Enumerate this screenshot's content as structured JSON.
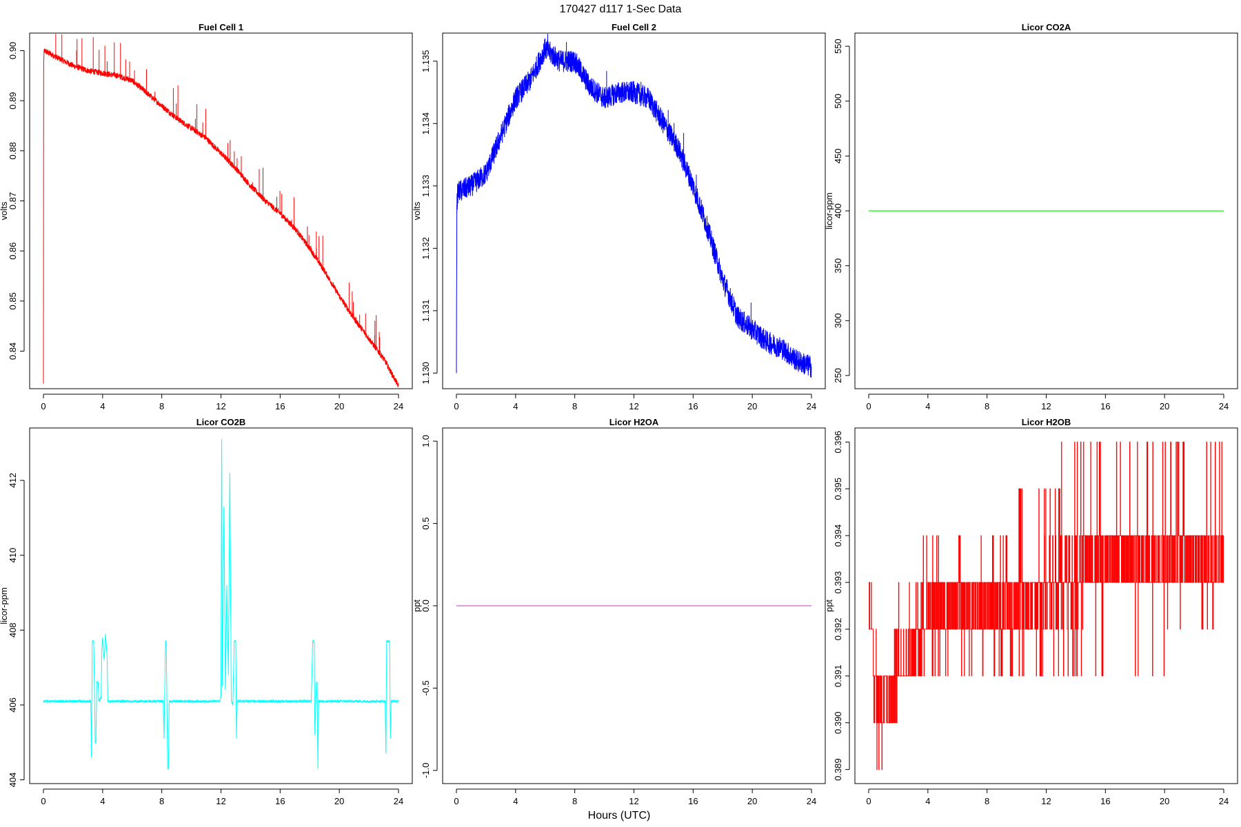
{
  "figure": {
    "title": "170427   d117   1-Sec Data",
    "xlabel": "Hours (UTC)"
  },
  "chart_data": [
    {
      "type": "line",
      "title": "Fuel Cell 1",
      "ylabel": "volts",
      "color": "#ff0000",
      "xlim": [
        0,
        24
      ],
      "ylim": [
        0.8325,
        0.9035
      ],
      "xticks": [
        0,
        4,
        8,
        12,
        16,
        20,
        24
      ],
      "xtick_labels": [
        "0",
        "4",
        "8",
        "12",
        "16",
        "20",
        "24"
      ],
      "yticks": [
        0.84,
        0.85,
        0.86,
        0.87,
        0.88,
        0.89,
        0.9
      ],
      "ytick_labels": [
        "0.84",
        "0.85",
        "0.86",
        "0.87",
        "0.88",
        "0.89",
        "0.90"
      ],
      "noise": 0.0006,
      "spike_count": 70,
      "spike_max": 0.007,
      "series": [
        {
          "x": [
            0,
            0.02,
            0.05,
            1,
            2,
            3,
            4,
            5,
            6,
            7,
            8,
            9,
            10,
            11,
            12,
            13,
            14,
            15,
            16,
            17,
            18,
            19,
            20,
            21,
            22,
            23,
            24
          ],
          "y": [
            0.8335,
            0.898,
            0.9,
            0.8985,
            0.897,
            0.896,
            0.8955,
            0.895,
            0.894,
            0.8915,
            0.889,
            0.8865,
            0.8845,
            0.8825,
            0.8795,
            0.8765,
            0.873,
            0.87,
            0.8675,
            0.8645,
            0.8605,
            0.856,
            0.851,
            0.8465,
            0.8425,
            0.8385,
            0.833
          ]
        }
      ]
    },
    {
      "type": "line",
      "title": "Fuel Cell 2",
      "ylabel": "volts",
      "color": "#0000ff",
      "xlim": [
        0,
        24
      ],
      "ylim": [
        1.12975,
        1.13545
      ],
      "xticks": [
        0,
        4,
        8,
        12,
        16,
        20,
        24
      ],
      "xtick_labels": [
        "0",
        "4",
        "8",
        "12",
        "16",
        "20",
        "24"
      ],
      "yticks": [
        1.13,
        1.131,
        1.132,
        1.133,
        1.134,
        1.135
      ],
      "ytick_labels": [
        "1.130",
        "1.131",
        "1.132",
        "1.133",
        "1.134",
        "1.135"
      ],
      "noise": 0.00018,
      "spike_count": 12,
      "spike_max": 0.0005,
      "series": [
        {
          "x": [
            0,
            0.03,
            0.1,
            1,
            2,
            3,
            4,
            5,
            6,
            7,
            8,
            9,
            10,
            11,
            12,
            13,
            14,
            15,
            16,
            17,
            18,
            19,
            20,
            21,
            22,
            23,
            24
          ],
          "y": [
            1.13,
            1.1327,
            1.1329,
            1.133,
            1.1332,
            1.1338,
            1.1344,
            1.1347,
            1.1352,
            1.135,
            1.135,
            1.1346,
            1.1344,
            1.1345,
            1.1345,
            1.1344,
            1.134,
            1.1336,
            1.133,
            1.1323,
            1.1315,
            1.1309,
            1.1307,
            1.1305,
            1.1304,
            1.1302,
            1.1301
          ]
        }
      ]
    },
    {
      "type": "line",
      "title": "Licor CO2A",
      "ylabel": "licor-ppm",
      "color": "#00ff00",
      "xlim": [
        0,
        24
      ],
      "ylim": [
        238,
        562
      ],
      "xticks": [
        0,
        4,
        8,
        12,
        16,
        20,
        24
      ],
      "xtick_labels": [
        "0",
        "4",
        "8",
        "12",
        "16",
        "20",
        "24"
      ],
      "yticks": [
        250,
        300,
        350,
        400,
        450,
        500,
        550
      ],
      "ytick_labels": [
        "250",
        "300",
        "350",
        "400",
        "450",
        "500",
        "550"
      ],
      "noise": 0,
      "spike_count": 0,
      "spike_max": 0,
      "series": [
        {
          "x": [
            0,
            24
          ],
          "y": [
            400,
            400
          ]
        }
      ]
    },
    {
      "type": "line",
      "title": "Licor CO2B",
      "ylabel": "licor-ppm",
      "color": "#00ffff",
      "xlim": [
        0,
        24
      ],
      "ylim": [
        403.9,
        413.4
      ],
      "xticks": [
        0,
        4,
        8,
        12,
        16,
        20,
        24
      ],
      "xtick_labels": [
        "0",
        "4",
        "8",
        "12",
        "16",
        "20",
        "24"
      ],
      "yticks": [
        404,
        406,
        408,
        410,
        412
      ],
      "ytick_labels": [
        "404",
        "406",
        "408",
        "410",
        "412"
      ],
      "noise": 0.03,
      "spike_count": 0,
      "spike_max": 0,
      "series": [
        {
          "x": [
            0,
            3.2,
            3.25,
            3.3,
            3.4,
            3.5,
            3.55,
            3.6,
            3.7,
            3.75,
            3.9,
            3.95,
            4.0,
            4.1,
            4.2,
            4.3,
            4.35,
            8.1,
            8.15,
            8.25,
            8.3,
            8.4,
            8.45,
            8.5,
            8.55,
            11.9,
            12.0,
            12.05,
            12.1,
            12.2,
            12.3,
            12.4,
            12.5,
            12.6,
            12.7,
            12.8,
            12.9,
            13.0,
            13.05,
            13.1,
            13.3,
            13.35,
            13.5,
            18.1,
            18.2,
            18.3,
            18.35,
            18.45,
            18.5,
            18.55,
            18.6,
            18.7,
            18.75,
            23.1,
            23.15,
            23.2,
            23.4,
            23.45,
            23.5,
            24
          ],
          "y": [
            406.1,
            406.1,
            404.6,
            407.7,
            407.7,
            405.0,
            405.0,
            406.6,
            406.6,
            406.1,
            406.2,
            407.5,
            407.8,
            407.2,
            407.9,
            407.3,
            406.1,
            406.1,
            405.1,
            407.7,
            407.7,
            404.3,
            404.3,
            406.1,
            406.1,
            406.1,
            406.2,
            413.1,
            406.5,
            411.3,
            406.4,
            409.2,
            406.8,
            412.2,
            406.1,
            406.0,
            407.7,
            407.7,
            405.1,
            406.1,
            406.1,
            406.1,
            406.1,
            406.1,
            407.7,
            407.7,
            405.2,
            406.6,
            406.6,
            404.3,
            406.1,
            406.1,
            406.1,
            406.1,
            404.7,
            407.7,
            407.7,
            405.1,
            406.1,
            406.1
          ]
        }
      ]
    },
    {
      "type": "line",
      "title": "Licor H2OA",
      "ylabel": "ppt",
      "color": "#cc66cc",
      "xlim": [
        0,
        24
      ],
      "ylim": [
        -1.08,
        1.08
      ],
      "xticks": [
        0,
        4,
        8,
        12,
        16,
        20,
        24
      ],
      "xtick_labels": [
        "0",
        "4",
        "8",
        "12",
        "16",
        "20",
        "24"
      ],
      "yticks": [
        -1.0,
        -0.5,
        0.0,
        0.5,
        1.0
      ],
      "ytick_labels": [
        "-1.0",
        "-0.5",
        "0.0",
        "0.5",
        "1.0"
      ],
      "noise": 0,
      "spike_count": 0,
      "spike_max": 0,
      "series": [
        {
          "x": [
            0,
            24
          ],
          "y": [
            0,
            0
          ]
        }
      ]
    },
    {
      "type": "line",
      "title": "Licor H2OB",
      "ylabel": "ppt",
      "color": "#ff0000",
      "xlim": [
        0,
        24
      ],
      "ylim": [
        0.3887,
        0.3963
      ],
      "xticks": [
        0,
        4,
        8,
        12,
        16,
        20,
        24
      ],
      "xtick_labels": [
        "0",
        "4",
        "8",
        "12",
        "16",
        "20",
        "24"
      ],
      "yticks": [
        0.389,
        0.39,
        0.391,
        0.392,
        0.393,
        0.394,
        0.395,
        0.396
      ],
      "ytick_labels": [
        "0.389",
        "0.390",
        "0.391",
        "0.392",
        "0.393",
        "0.394",
        "0.395",
        "0.396"
      ],
      "quantized_step": 0.001,
      "quantized_bands": [
        {
          "x0": 0.0,
          "x1": 0.3,
          "lo": 0.392,
          "hi": 0.394
        },
        {
          "x0": 0.3,
          "x1": 1.0,
          "lo": 0.389,
          "hi": 0.392
        },
        {
          "x0": 1.0,
          "x1": 2.0,
          "lo": 0.39,
          "hi": 0.392
        },
        {
          "x0": 2.0,
          "x1": 3.5,
          "lo": 0.391,
          "hi": 0.393
        },
        {
          "x0": 3.5,
          "x1": 6.0,
          "lo": 0.391,
          "hi": 0.394
        },
        {
          "x0": 6.0,
          "x1": 10.0,
          "lo": 0.391,
          "hi": 0.394
        },
        {
          "x0": 10.0,
          "x1": 13.0,
          "lo": 0.391,
          "hi": 0.395
        },
        {
          "x0": 13.0,
          "x1": 16.0,
          "lo": 0.391,
          "hi": 0.396
        },
        {
          "x0": 16.0,
          "x1": 20.0,
          "lo": 0.391,
          "hi": 0.396
        },
        {
          "x0": 20.0,
          "x1": 24.0,
          "lo": 0.392,
          "hi": 0.396
        }
      ],
      "series": [
        {
          "x": [
            0,
            0.3,
            1,
            2,
            3.5,
            6,
            10,
            13,
            16,
            20,
            24
          ],
          "y": [
            0.393,
            0.391,
            0.3905,
            0.391,
            0.392,
            0.3925,
            0.3925,
            0.393,
            0.3935,
            0.3935,
            0.3935
          ]
        }
      ]
    }
  ]
}
